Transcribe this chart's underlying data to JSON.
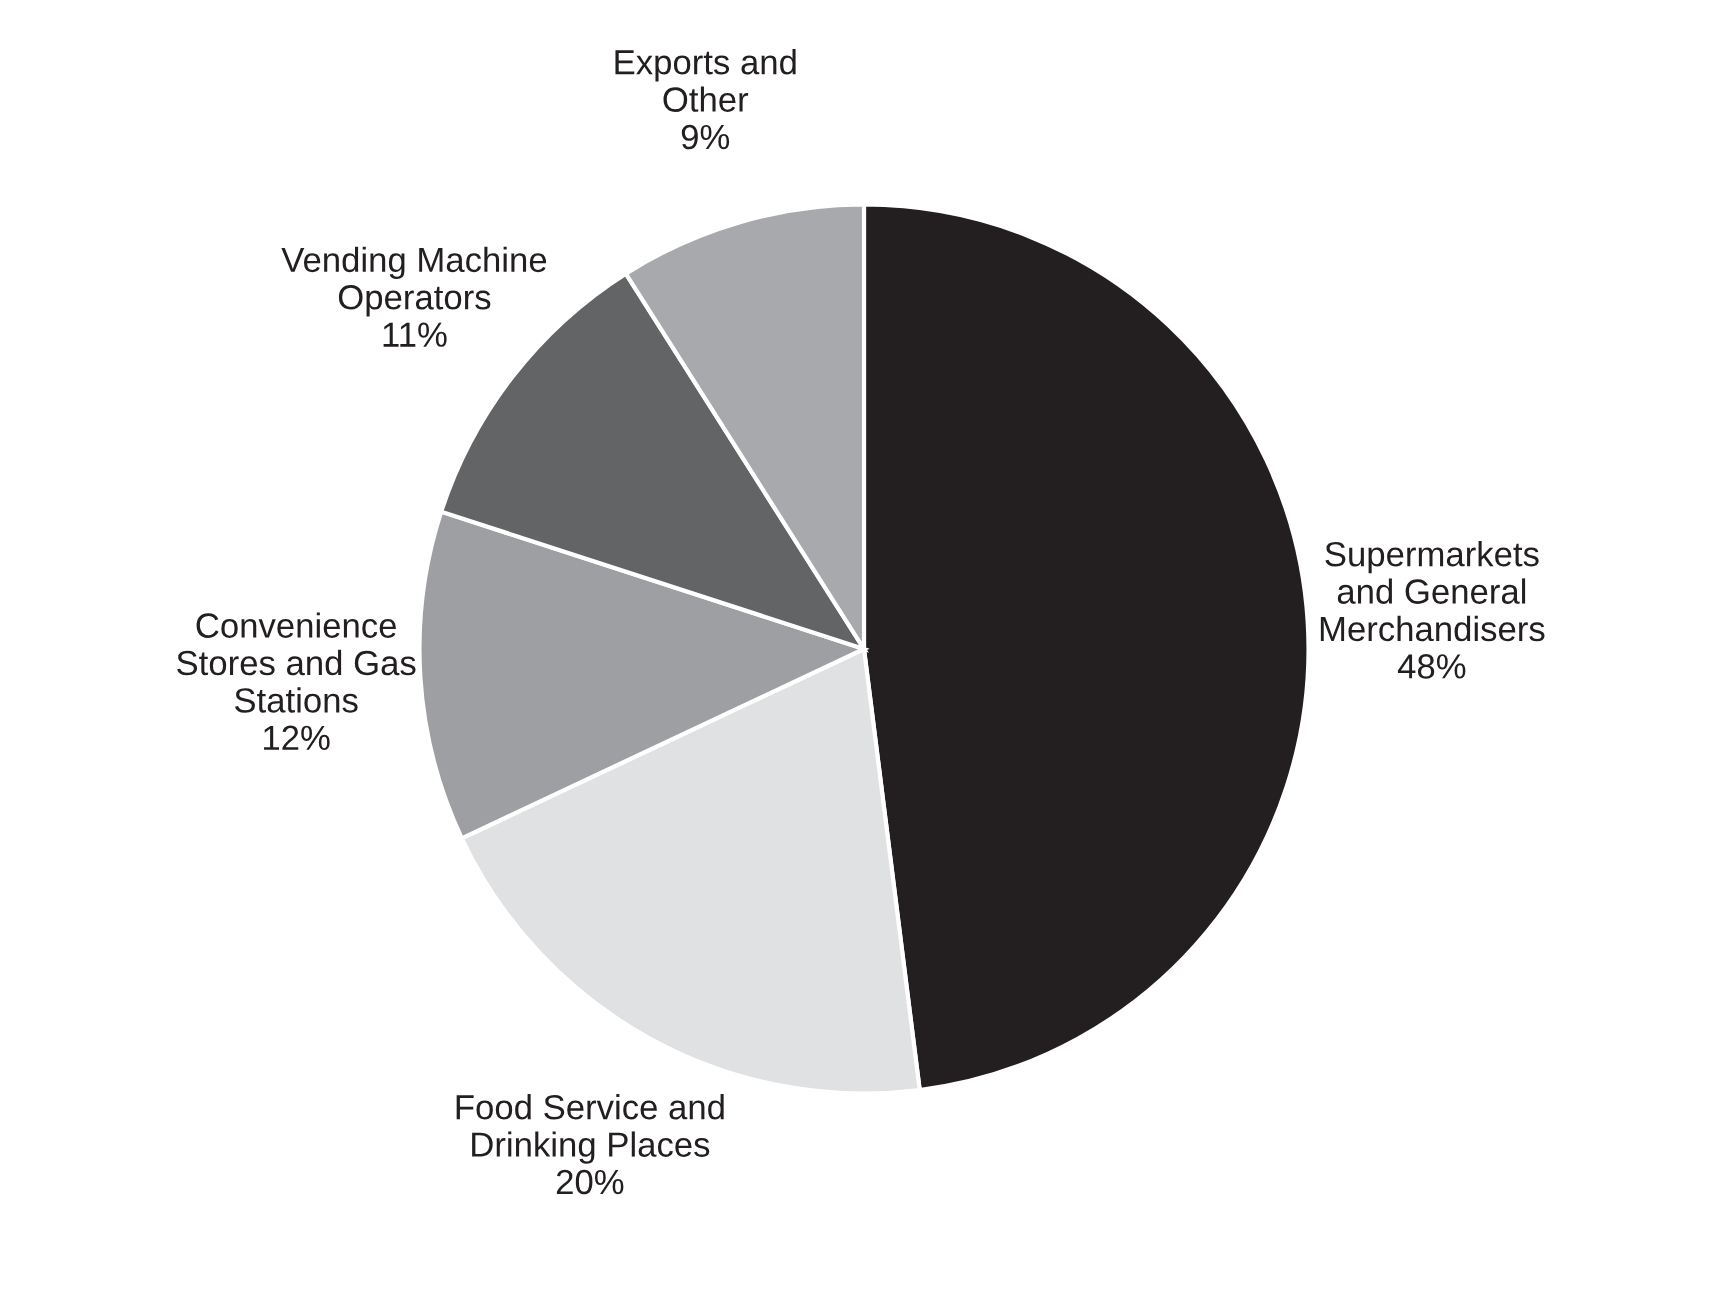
{
  "chart_data": {
    "type": "pie",
    "categories": [
      "Supermarkets\nand General\nMerchandisers",
      "Food Service and\nDrinking Places",
      "Convenience\nStores and Gas\nStations",
      "Vending Machine\nOperators",
      "Exports and\nOther"
    ],
    "values": [
      48,
      20,
      12,
      11,
      9
    ],
    "value_labels": [
      "48%",
      "20%",
      "12%",
      "11%",
      "9%"
    ],
    "colors": [
      "#231f20",
      "#e0e1e2",
      "#9d9fa2",
      "#636466",
      "#a7a9ac"
    ]
  }
}
